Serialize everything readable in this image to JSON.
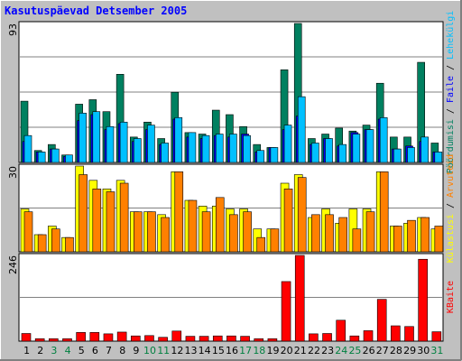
{
  "title": "Kasutuspäevad Detsember 2005",
  "colors": {
    "background": "#c0c0c0",
    "plot_bg": "#ffffff",
    "grid": "#808080",
    "weekday_label": "#000000",
    "weekend_label": "#008040",
    "visits": "#008060",
    "pages": "#0000ff",
    "files": "#00c0ff",
    "hits": "#ffff00",
    "visits_site": "#ff8000",
    "kbytes": "#ff0000"
  },
  "right_labels": {
    "top": [
      {
        "text": "Pöördumisi",
        "color": "#008060"
      },
      {
        "text": " / ",
        "color": "#000000"
      },
      {
        "text": "Faile",
        "color": "#0000ff"
      },
      {
        "text": " / ",
        "color": "#000000"
      },
      {
        "text": "Lehekülgi",
        "color": "#00c0ff"
      }
    ],
    "middle": [
      {
        "text": "Külastusi",
        "color": "#ffff00"
      },
      {
        "text": " / ",
        "color": "#000000"
      },
      {
        "text": "Arvuteid",
        "color": "#ff8000"
      }
    ],
    "bottom": [
      {
        "text": "KBaite",
        "color": "#ff0000"
      }
    ]
  },
  "chart_data": [
    {
      "type": "bar",
      "panel": "top",
      "ymax_label": "93",
      "ylim": [
        0,
        93
      ],
      "categories": [
        "1",
        "2",
        "3",
        "4",
        "5",
        "6",
        "7",
        "8",
        "9",
        "10",
        "11",
        "12",
        "13",
        "14",
        "15",
        "16",
        "17",
        "18",
        "19",
        "20",
        "21",
        "22",
        "23",
        "24",
        "25",
        "26",
        "27",
        "28",
        "29",
        "30",
        "31"
      ],
      "weekend": [
        3,
        4,
        10,
        11,
        17,
        18,
        24,
        25,
        31
      ],
      "series": [
        {
          "name": "Pöördumisi",
          "values": [
            41,
            8,
            12,
            5,
            39,
            42,
            34,
            59,
            17,
            27,
            16,
            47,
            20,
            19,
            35,
            32,
            24,
            12,
            10,
            62,
            93,
            16,
            19,
            23,
            21,
            25,
            53,
            17,
            17,
            67,
            13
          ]
        },
        {
          "name": "Faile",
          "values": [
            14,
            7,
            9,
            4,
            28,
            32,
            22,
            26,
            14,
            22,
            12,
            29,
            17,
            16,
            18,
            17,
            19,
            7,
            10,
            22,
            31,
            12,
            16,
            11,
            20,
            22,
            29,
            9,
            11,
            14,
            7
          ]
        },
        {
          "name": "Lehekülgi",
          "values": [
            18,
            7,
            9,
            5,
            33,
            34,
            24,
            27,
            16,
            25,
            13,
            30,
            20,
            18,
            19,
            19,
            18,
            8,
            10,
            25,
            44,
            13,
            16,
            12,
            19,
            22,
            30,
            9,
            10,
            17,
            7
          ]
        }
      ]
    },
    {
      "type": "bar",
      "panel": "middle",
      "ymax_label": "30",
      "ylim": [
        0,
        30
      ],
      "categories": [
        "1",
        "2",
        "3",
        "4",
        "5",
        "6",
        "7",
        "8",
        "9",
        "10",
        "11",
        "12",
        "13",
        "14",
        "15",
        "16",
        "17",
        "18",
        "19",
        "20",
        "21",
        "22",
        "23",
        "24",
        "25",
        "26",
        "27",
        "28",
        "29",
        "30",
        "31"
      ],
      "series": [
        {
          "name": "Külastusi",
          "values": [
            15,
            6,
            9,
            5,
            30,
            25,
            22,
            25,
            14,
            14,
            13,
            28,
            18,
            16,
            16,
            15,
            15,
            8,
            8,
            24,
            27,
            12,
            15,
            10,
            15,
            15,
            28,
            9,
            10,
            12,
            8
          ]
        },
        {
          "name": "Arvuteid",
          "values": [
            14,
            6,
            8,
            5,
            27,
            22,
            21,
            24,
            14,
            14,
            12,
            28,
            18,
            14,
            19,
            13,
            14,
            5,
            8,
            22,
            26,
            13,
            13,
            12,
            8,
            14,
            28,
            9,
            11,
            12,
            9
          ]
        }
      ]
    },
    {
      "type": "bar",
      "panel": "bottom",
      "ymax_label": "246",
      "ylim": [
        0,
        246
      ],
      "categories": [
        "1",
        "2",
        "3",
        "4",
        "5",
        "6",
        "7",
        "8",
        "9",
        "10",
        "11",
        "12",
        "13",
        "14",
        "15",
        "16",
        "17",
        "18",
        "19",
        "20",
        "21",
        "22",
        "23",
        "24",
        "25",
        "26",
        "27",
        "28",
        "29",
        "30",
        "31"
      ],
      "series": [
        {
          "name": "KBaite",
          "values": [
            22,
            7,
            7,
            7,
            25,
            25,
            21,
            26,
            15,
            16,
            11,
            29,
            14,
            14,
            15,
            15,
            14,
            7,
            7,
            171,
            246,
            21,
            22,
            60,
            15,
            30,
            120,
            44,
            42,
            235,
            27
          ]
        }
      ]
    }
  ]
}
